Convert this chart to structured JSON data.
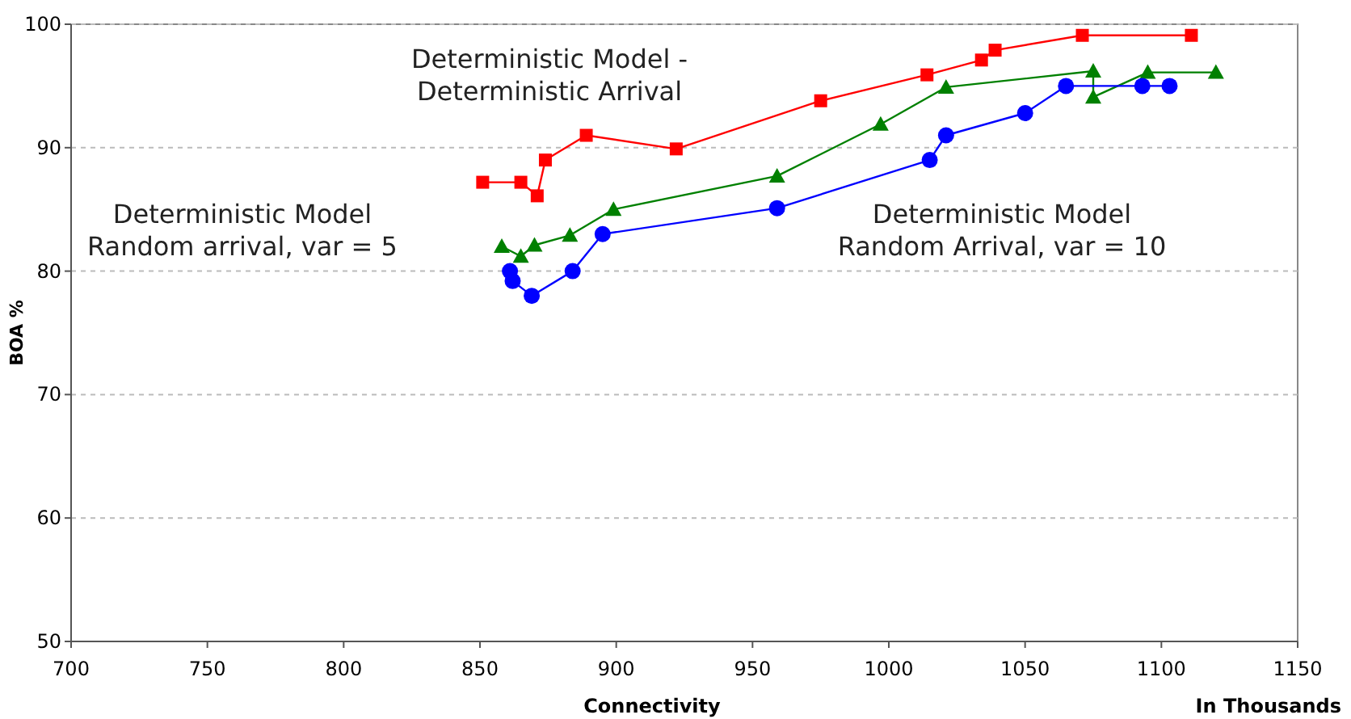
{
  "chart_data": {
    "type": "line",
    "xlabel": "Connectivity",
    "ylabel": "BOA %",
    "xlim": [
      700,
      1150
    ],
    "xticks": [
      700,
      750,
      800,
      850,
      900,
      950,
      1000,
      1050,
      1100,
      1150
    ],
    "ylim": [
      50,
      100
    ],
    "yticks": [
      50,
      60,
      70,
      80,
      90,
      100
    ],
    "grid": "y",
    "series": [
      {
        "color": "#ff0000",
        "marker": "square",
        "x": [
          851,
          865,
          871,
          874,
          889,
          922,
          975,
          1014,
          1034,
          1039,
          1071,
          1111
        ],
        "values": [
          87.2,
          87.2,
          86.1,
          89,
          91,
          89.9,
          93.8,
          95.9,
          97.1,
          97.9,
          99.1,
          99.1
        ]
      },
      {
        "color": "#008000",
        "marker": "triangle",
        "x": [
          858,
          865,
          870,
          883,
          899,
          959,
          997,
          1021,
          1075,
          1075,
          1095,
          1120
        ],
        "values": [
          82,
          81.2,
          82.1,
          82.9,
          85,
          87.7,
          91.9,
          94.9,
          96.2,
          94.1,
          96.1,
          96.1
        ]
      },
      {
        "color": "#0000ff",
        "marker": "circle",
        "x": [
          861,
          862,
          869,
          884,
          895,
          959,
          1015,
          1021,
          1050,
          1065,
          1093,
          1103
        ],
        "values": [
          80,
          79.2,
          78,
          80,
          83,
          85.1,
          89,
          91,
          92.8,
          95,
          95,
          95
        ]
      }
    ],
    "annotations": [
      "Deterministic Model -\nDeterministic Arrival",
      "Deterministic Model\nRandom arrival, var = 5",
      "Deterministic Model\nRandom Arrival, var = 10",
      "In Thousands"
    ]
  }
}
